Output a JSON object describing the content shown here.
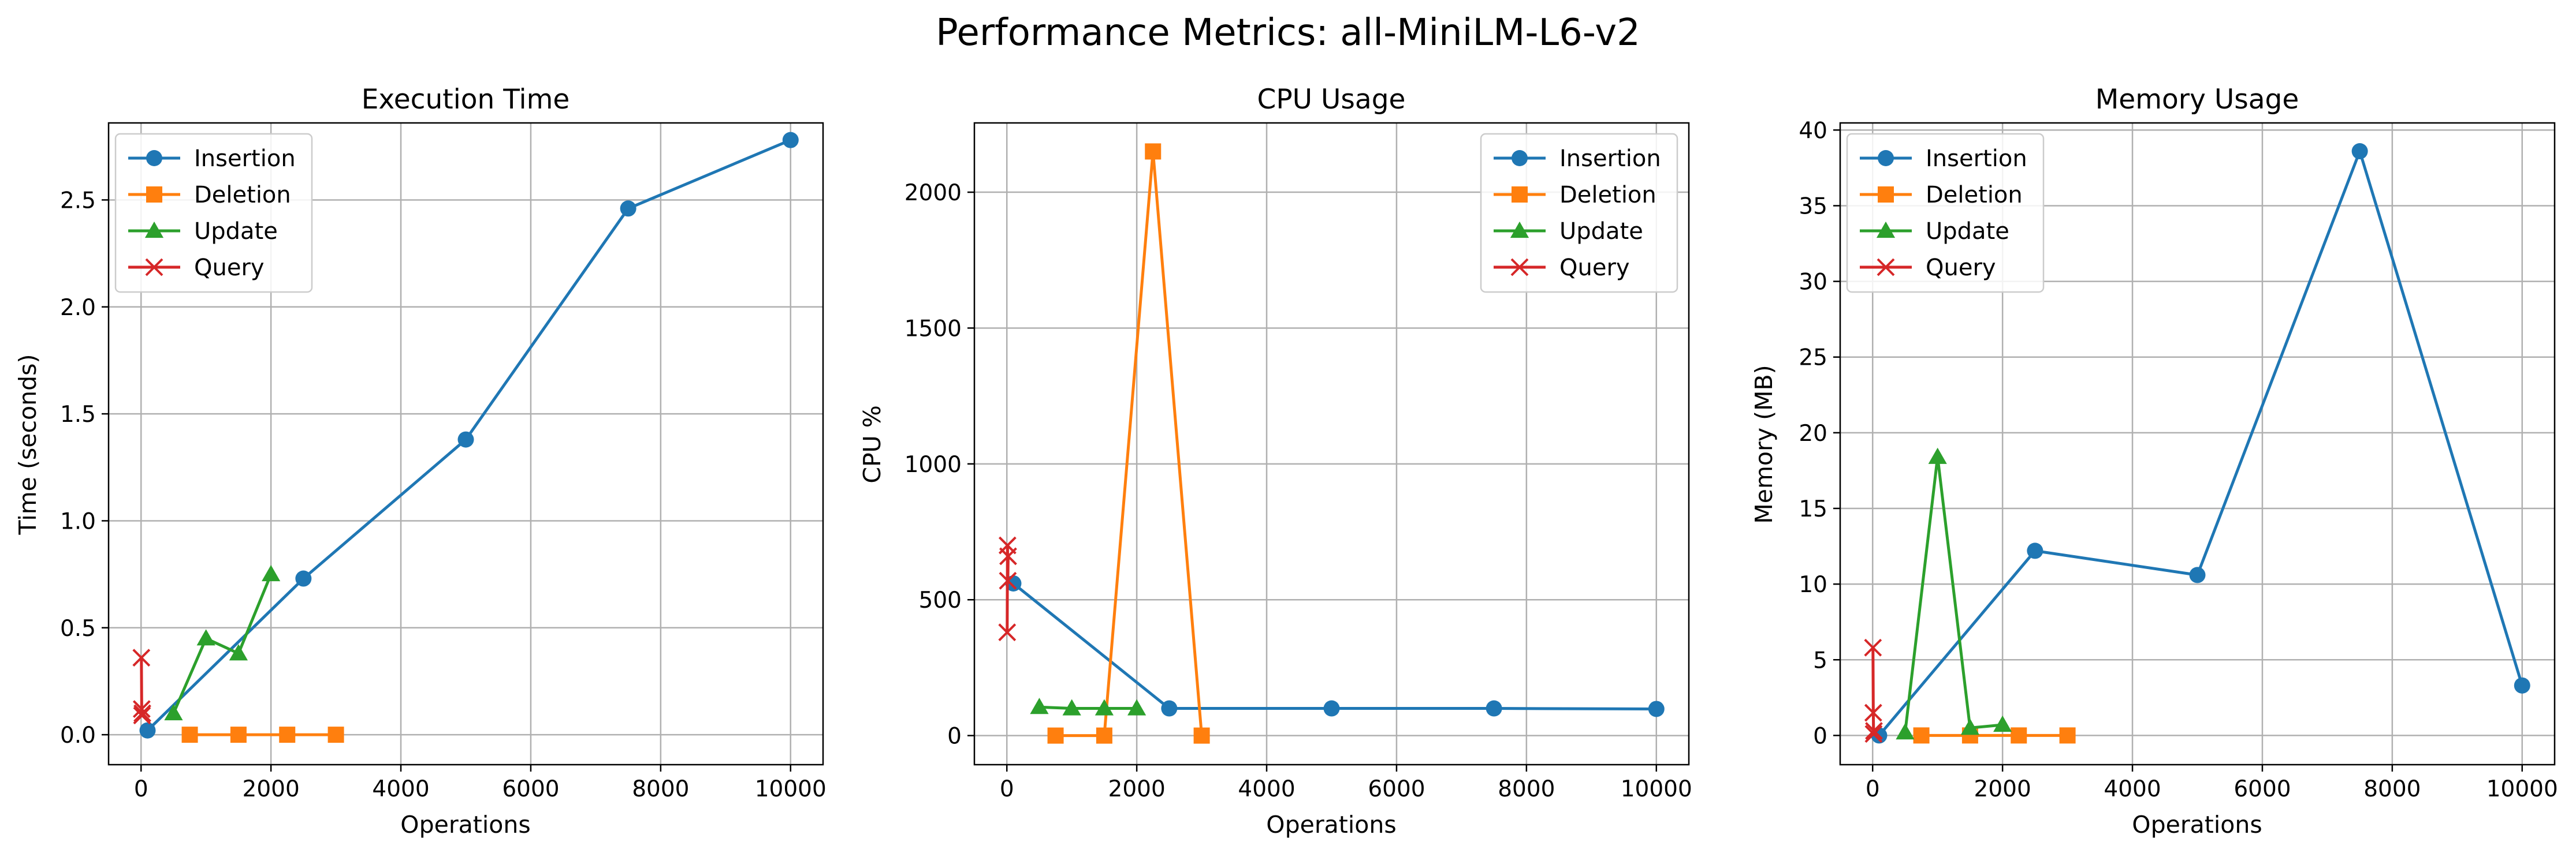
{
  "figure": {
    "title": "Performance Metrics: all-MiniLM-L6-v2"
  },
  "colors": {
    "Insertion": "#1f77b4",
    "Deletion": "#ff7f0e",
    "Update": "#2ca02c",
    "Query": "#d62728"
  },
  "chart_data": [
    {
      "type": "line",
      "title": "Execution Time",
      "xlabel": "Operations",
      "ylabel": "Time (seconds)",
      "xlim": [
        -500,
        10500
      ],
      "ylim": [
        -0.14,
        2.86
      ],
      "xticks": [
        0,
        2000,
        4000,
        6000,
        8000,
        10000
      ],
      "yticks": [
        0.0,
        0.5,
        1.0,
        1.5,
        2.0,
        2.5
      ],
      "ytick_decimals": 1,
      "grid": true,
      "legend": "upper left",
      "series": [
        {
          "name": "Insertion",
          "marker": "circle",
          "x": [
            100,
            2500,
            5000,
            7500,
            10000
          ],
          "y": [
            0.02,
            0.73,
            1.38,
            2.46,
            2.78
          ]
        },
        {
          "name": "Deletion",
          "marker": "square",
          "x": [
            750,
            1500,
            2250,
            3000
          ],
          "y": [
            0.0,
            0.0,
            0.0,
            0.0
          ]
        },
        {
          "name": "Update",
          "marker": "triangle",
          "x": [
            500,
            1000,
            1500,
            2000
          ],
          "y": [
            0.1,
            0.45,
            0.38,
            0.75
          ]
        },
        {
          "name": "Query",
          "marker": "x",
          "x": [
            5,
            10,
            15,
            20
          ],
          "y": [
            0.36,
            0.12,
            0.09,
            0.1
          ]
        }
      ]
    },
    {
      "type": "line",
      "title": "CPU Usage",
      "xlabel": "Operations",
      "ylabel": "CPU %",
      "xlim": [
        -500,
        10500
      ],
      "ylim": [
        -107,
        2255
      ],
      "xticks": [
        0,
        2000,
        4000,
        6000,
        8000,
        10000
      ],
      "yticks": [
        0,
        500,
        1000,
        1500,
        2000
      ],
      "ytick_decimals": 0,
      "grid": true,
      "legend": "upper right",
      "series": [
        {
          "name": "Insertion",
          "marker": "circle",
          "x": [
            100,
            2500,
            5000,
            7500,
            10000
          ],
          "y": [
            560,
            100,
            100,
            100,
            98
          ]
        },
        {
          "name": "Deletion",
          "marker": "square",
          "x": [
            750,
            1500,
            2250,
            3000
          ],
          "y": [
            0,
            0,
            2150,
            0
          ]
        },
        {
          "name": "Update",
          "marker": "triangle",
          "x": [
            500,
            1000,
            1500,
            2000
          ],
          "y": [
            105,
            100,
            100,
            100
          ]
        },
        {
          "name": "Query",
          "marker": "x",
          "x": [
            5,
            10,
            15,
            20
          ],
          "y": [
            380,
            700,
            570,
            660
          ]
        }
      ]
    },
    {
      "type": "line",
      "title": "Memory Usage",
      "xlabel": "Operations",
      "ylabel": "Memory (MB)",
      "xlim": [
        -500,
        10500
      ],
      "ylim": [
        -1.93,
        40.47
      ],
      "xticks": [
        0,
        2000,
        4000,
        6000,
        8000,
        10000
      ],
      "yticks": [
        0,
        5,
        10,
        15,
        20,
        25,
        30,
        35,
        40
      ],
      "ytick_decimals": 0,
      "grid": true,
      "legend": "upper left",
      "series": [
        {
          "name": "Insertion",
          "marker": "circle",
          "x": [
            100,
            2500,
            5000,
            7500,
            10000
          ],
          "y": [
            0.0,
            12.2,
            10.6,
            38.6,
            3.3
          ]
        },
        {
          "name": "Deletion",
          "marker": "square",
          "x": [
            750,
            1500,
            2250,
            3000
          ],
          "y": [
            0.0,
            0.0,
            0.0,
            0.0
          ]
        },
        {
          "name": "Update",
          "marker": "triangle",
          "x": [
            500,
            1000,
            1500,
            2000
          ],
          "y": [
            0.2,
            18.4,
            0.5,
            0.7
          ]
        },
        {
          "name": "Query",
          "marker": "x",
          "x": [
            5,
            10,
            15,
            20
          ],
          "y": [
            5.8,
            1.5,
            0.1,
            0.3
          ]
        }
      ]
    }
  ]
}
